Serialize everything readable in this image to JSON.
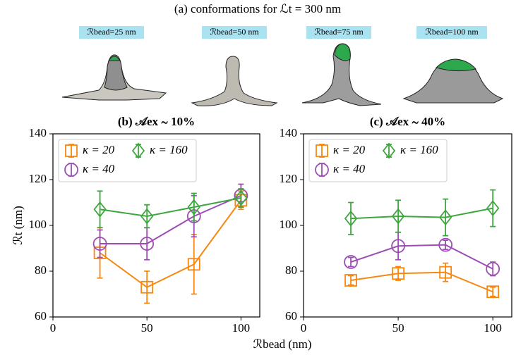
{
  "panel_a": {
    "title": "(a) conformations for ℒt = 300 nm",
    "labels": [
      "ℛbead=25 nm",
      "ℛbead=50 nm",
      "ℛbead=75 nm",
      "ℛbead=100 nm"
    ]
  },
  "chart_data": [
    {
      "type": "line",
      "title": "(b) 𝒜ex ∼ 10%",
      "ylabel": "ℛt (nm)",
      "xlabel": "ℛbead (nm)",
      "x": [
        25,
        50,
        75,
        100
      ],
      "xlim": [
        0,
        110
      ],
      "xticks": [
        0,
        50,
        100
      ],
      "ylim": [
        60,
        140
      ],
      "yticks": [
        60,
        80,
        100,
        120,
        140
      ],
      "legend": "upper left",
      "series": [
        {
          "name": "κ = 20",
          "color": "#f7870f",
          "marker": "square",
          "values": [
            88,
            73,
            83,
            111
          ],
          "errors": [
            11,
            7,
            13,
            4
          ]
        },
        {
          "name": "κ = 40",
          "color": "#9c4db5",
          "marker": "circle",
          "values": [
            92,
            92,
            104,
            113
          ],
          "errors": [
            6,
            7,
            9,
            5
          ]
        },
        {
          "name": "κ = 160",
          "color": "#3ea63e",
          "marker": "diamond",
          "values": [
            107,
            104,
            108,
            112
          ],
          "errors": [
            8,
            5,
            6,
            4
          ]
        }
      ]
    },
    {
      "type": "line",
      "title": "(c) 𝒜ex ∼ 40%",
      "x": [
        25,
        50,
        75,
        100
      ],
      "xlim": [
        0,
        110
      ],
      "xticks": [
        0,
        50,
        100
      ],
      "ylim": [
        60,
        140
      ],
      "yticks": [
        60,
        80,
        100,
        120,
        140
      ],
      "legend": "upper left",
      "series": [
        {
          "name": "κ = 20",
          "color": "#f7870f",
          "marker": "square",
          "values": [
            76,
            79,
            79.5,
            71
          ],
          "errors": [
            2,
            3,
            4,
            2
          ]
        },
        {
          "name": "κ = 40",
          "color": "#9c4db5",
          "marker": "circle",
          "values": [
            84,
            91,
            91.5,
            81
          ],
          "errors": [
            2,
            6,
            2,
            3
          ]
        },
        {
          "name": "κ = 160",
          "color": "#3ea63e",
          "marker": "diamond",
          "values": [
            103,
            104,
            103.5,
            107.5
          ],
          "errors": [
            7,
            7,
            8,
            8
          ]
        }
      ]
    }
  ]
}
